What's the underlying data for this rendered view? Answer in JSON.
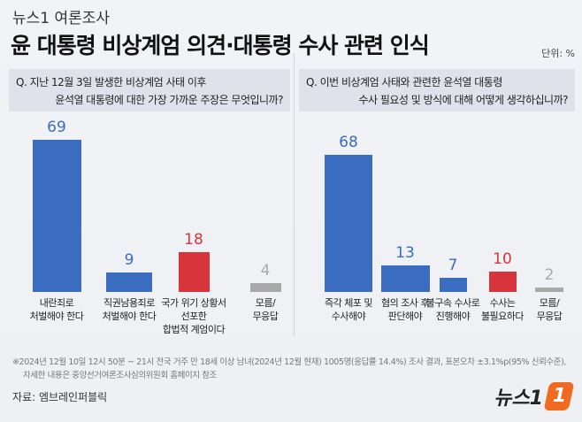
{
  "header": {
    "kicker": "뉴스1 여론조사",
    "title": "윤 대통령 비상계엄 의견·대통령 수사 관련 인식",
    "unit": "단위: %"
  },
  "colors": {
    "blue": "#3a6cbf",
    "red": "#d8343c",
    "gray": "#a9a9a9"
  },
  "chart_data": [
    {
      "type": "bar",
      "question": [
        "Q. 지난 12월 3일 발생한 비상계엄 사태 이후",
        "윤석열 대통령에 대한 가장 가까운 주장은 무엇입니까?"
      ],
      "categories": [
        "내란죄로\n처벌해야 한다",
        "직권남용죄로\n처벌해야 한다",
        "국가 위기 상황서\n선포한\n합법적 계엄이다",
        "모름/\n무응답"
      ],
      "values": [
        69,
        9,
        18,
        4
      ],
      "colors": [
        "blue",
        "blue",
        "red",
        "gray"
      ]
    },
    {
      "type": "bar",
      "question": [
        "Q. 이번 비상계엄 사태와 관련한 윤석열 대통령",
        "수사 필요성 및 방식에 대해 어떻게 생각하십니까?"
      ],
      "categories": [
        "즉각 체포 및\n수사해야",
        "혐의 조사 후\n판단해야",
        "불구속 수사로\n진행해야",
        "수사는\n불필요하다",
        "모름/\n무응답"
      ],
      "values": [
        68,
        13,
        7,
        10,
        2
      ],
      "colors": [
        "blue",
        "blue",
        "blue",
        "red",
        "gray"
      ]
    }
  ],
  "footer": {
    "note": [
      "※2024년 12월 10일 12시 50분 ~ 21시 전국 거주 만 18세 이상 남녀(2024년 12월 현재) 1005명(응답률 14.4%) 조사 결과, 표본오차 ±3.1%p(95% 신뢰수준),",
      "자세한 내용은 중앙선거여론조사심의위원회 홈페이지 참조"
    ],
    "source": "자료: 엠브레인퍼블릭",
    "logo": "뉴스1"
  }
}
